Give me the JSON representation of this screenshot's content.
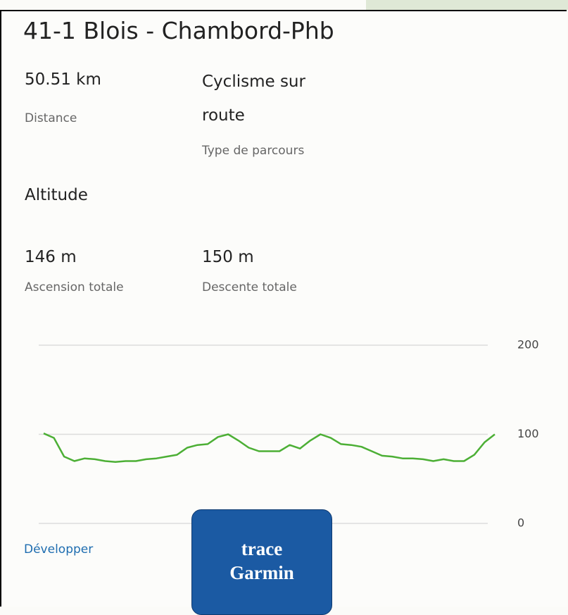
{
  "header": {
    "title": "41-1 Blois - Chambord-Phb"
  },
  "stats": [
    {
      "value": "50.51 km",
      "label": "Distance"
    },
    {
      "value": "Cyclisme sur route",
      "label": "Type de parcours"
    }
  ],
  "altitude": {
    "title": "Altitude",
    "stats": [
      {
        "value": "146 m",
        "label": "Ascension totale"
      },
      {
        "value": "150 m",
        "label": "Descente totale"
      }
    ]
  },
  "chart_data": {
    "type": "line",
    "series": [
      {
        "color": "#4caf35",
        "values": [
          101,
          96,
          75,
          70,
          73,
          72,
          70,
          69,
          70,
          70,
          72,
          73,
          75,
          77,
          85,
          88,
          89,
          97,
          100,
          93,
          85,
          81,
          81,
          81,
          88,
          84,
          93,
          100,
          96,
          89,
          88,
          86,
          81,
          76,
          75,
          73,
          73,
          72,
          70,
          72,
          70,
          70,
          77,
          91,
          100
        ]
      }
    ],
    "ylim": [
      0,
      200
    ],
    "yticks": [
      0,
      100,
      200
    ],
    "grid": true
  },
  "link": "Développer",
  "badge": "trace Garmin"
}
